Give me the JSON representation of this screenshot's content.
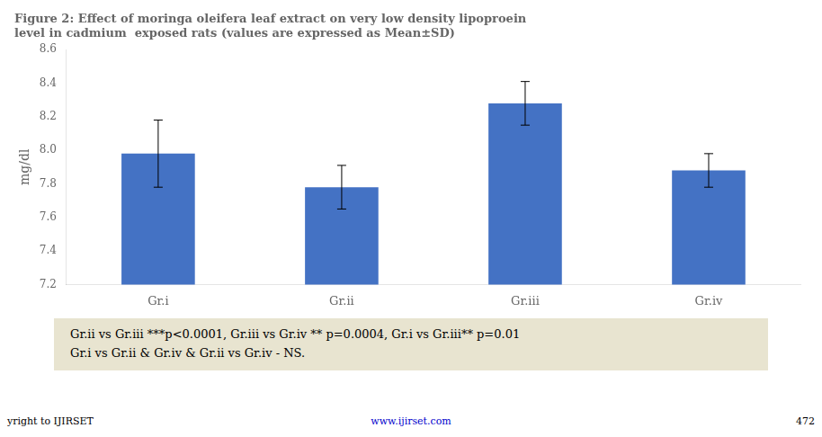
{
  "chart_data": {
    "type": "bar",
    "title": [
      "Figure 2: Effect of moringa oleifera leaf extract on very low density lipoproein",
      "level in cadmium  exposed rats (values are expressed as Mean±SD)"
    ],
    "categories": [
      "Gr.i",
      "Gr.ii",
      "Gr.iii",
      "Gr.iv"
    ],
    "values": [
      7.98,
      7.78,
      8.28,
      7.88
    ],
    "errors": [
      0.2,
      0.13,
      0.13,
      0.1
    ],
    "color": "#4472C4",
    "ylabel": "mg/dl",
    "ylim": [
      7.2,
      8.6
    ],
    "yticks": [
      7.2,
      7.4,
      7.6,
      7.8,
      {
        "value": 8.0,
        "label": "8.0"
      },
      8.2,
      8.4,
      8.6
    ],
    "grid": false,
    "legend": false,
    "annotations": [
      "Gr.ii vs Gr.iii ***p<0.0001, Gr.iii vs Gr.iv ** p=0.0004, Gr.i vs Gr.iii** p=0.01",
      "Gr.i vs Gr.ii & Gr.iv  & Gr.ii vs Gr.iv -  NS."
    ],
    "footer": [
      "yright to IJIRSET",
      "www.ijirset.com",
      "472"
    ]
  }
}
